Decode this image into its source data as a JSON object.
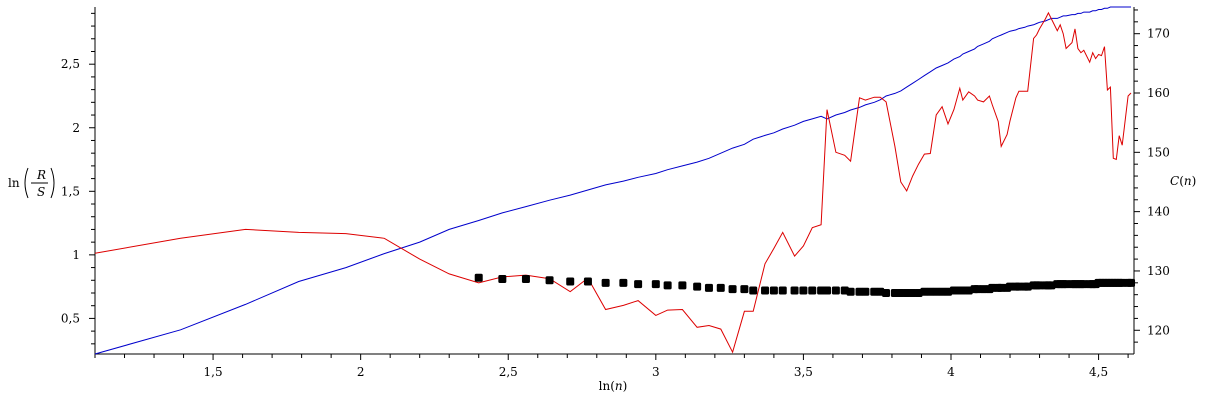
{
  "chart_data": {
    "type": "line",
    "title": "",
    "xlabel": "ln(n)",
    "ylabel_left": "ln(R/S)",
    "ylabel_left_parts": {
      "prefix": "ln",
      "numerator": "R",
      "denominator": "S"
    },
    "ylabel_right": "C(n)",
    "xlim": [
      1.1,
      4.62
    ],
    "ylim_left": [
      0.22,
      2.95
    ],
    "ylim_right": [
      116,
      174.5
    ],
    "x_ticks": [
      1.5,
      2,
      2.5,
      3,
      3.5,
      4,
      4.5
    ],
    "x_tick_labels": [
      "1,5",
      "2",
      "2,5",
      "3",
      "3,5",
      "4",
      "4,5"
    ],
    "y_left_ticks": [
      0.5,
      1,
      1.5,
      2,
      2.5
    ],
    "y_left_tick_labels": [
      "0,5",
      "1",
      "1,5",
      "2",
      "2,5"
    ],
    "y_right_ticks": [
      120,
      130,
      140,
      150,
      160,
      170
    ],
    "y_right_tick_labels": [
      "120",
      "130",
      "140",
      "150",
      "160",
      "170"
    ],
    "grid": false,
    "colors": {
      "blue": "#0000cc",
      "red": "#dd0000",
      "black": "#000000"
    },
    "series": [
      {
        "axis": "left",
        "style": "line",
        "color": "#0000cc",
        "x": [
          1.1,
          1.39,
          1.61,
          1.79,
          1.95,
          2.08,
          2.2,
          2.3,
          2.4,
          2.48,
          2.56,
          2.64,
          2.71,
          2.77,
          2.83,
          2.89,
          2.94,
          3.0,
          3.04,
          3.09,
          3.14,
          3.18,
          3.22,
          3.26,
          3.3,
          3.33,
          3.37,
          3.4,
          3.43,
          3.47,
          3.5,
          3.53,
          3.56,
          3.58,
          3.61,
          3.64,
          3.66,
          3.69,
          3.71,
          3.74,
          3.76,
          3.78,
          3.81,
          3.83,
          3.85,
          3.87,
          3.89,
          3.91,
          3.93,
          3.95,
          3.97,
          3.99,
          4.01,
          4.03,
          4.04,
          4.06,
          4.08,
          4.09,
          4.11,
          4.13,
          4.14,
          4.16,
          4.17,
          4.19,
          4.2,
          4.22,
          4.23,
          4.25,
          4.26,
          4.28,
          4.29,
          4.3,
          4.32,
          4.33,
          4.34,
          4.36,
          4.37,
          4.38,
          4.39,
          4.41,
          4.42,
          4.43,
          4.44,
          4.45,
          4.47,
          4.48,
          4.49,
          4.5,
          4.51,
          4.52,
          4.53,
          4.54,
          4.55,
          4.56,
          4.57,
          4.58,
          4.6,
          4.61
        ],
        "y": [
          0.22,
          0.41,
          0.61,
          0.79,
          0.9,
          1.01,
          1.1,
          1.2,
          1.27,
          1.33,
          1.38,
          1.43,
          1.47,
          1.51,
          1.55,
          1.58,
          1.61,
          1.64,
          1.67,
          1.7,
          1.73,
          1.76,
          1.8,
          1.84,
          1.87,
          1.91,
          1.94,
          1.96,
          1.99,
          2.02,
          2.05,
          2.07,
          2.09,
          2.07,
          2.1,
          2.12,
          2.14,
          2.16,
          2.18,
          2.2,
          2.22,
          2.25,
          2.27,
          2.29,
          2.32,
          2.35,
          2.38,
          2.41,
          2.44,
          2.47,
          2.49,
          2.51,
          2.54,
          2.56,
          2.58,
          2.6,
          2.62,
          2.64,
          2.66,
          2.68,
          2.7,
          2.72,
          2.73,
          2.75,
          2.76,
          2.77,
          2.78,
          2.79,
          2.8,
          2.81,
          2.82,
          2.83,
          2.84,
          2.85,
          2.86,
          2.86,
          2.87,
          2.88,
          2.88,
          2.89,
          2.89,
          2.9,
          2.9,
          2.91,
          2.91,
          2.92,
          2.92,
          2.93,
          2.93,
          2.94,
          2.94,
          2.95,
          2.95,
          2.95,
          2.95,
          2.95,
          2.95,
          2.95
        ]
      },
      {
        "axis": "right",
        "style": "line",
        "color": "#dd0000",
        "x": [
          1.1,
          1.39,
          1.61,
          1.79,
          1.95,
          2.08,
          2.2,
          2.3,
          2.4,
          2.48,
          2.56,
          2.64,
          2.71,
          2.77,
          2.83,
          2.89,
          2.94,
          3.0,
          3.04,
          3.09,
          3.14,
          3.18,
          3.22,
          3.26,
          3.3,
          3.33,
          3.37,
          3.4,
          3.43,
          3.47,
          3.5,
          3.53,
          3.56,
          3.58,
          3.61,
          3.64,
          3.66,
          3.69,
          3.71,
          3.74,
          3.76,
          3.78,
          3.81,
          3.83,
          3.85,
          3.87,
          3.89,
          3.91,
          3.93,
          3.95,
          3.97,
          3.99,
          4.01,
          4.03,
          4.04,
          4.06,
          4.08,
          4.09,
          4.11,
          4.13,
          4.14,
          4.16,
          4.17,
          4.19,
          4.2,
          4.22,
          4.23,
          4.25,
          4.26,
          4.28,
          4.29,
          4.3,
          4.32,
          4.33,
          4.34,
          4.36,
          4.37,
          4.38,
          4.39,
          4.41,
          4.42,
          4.43,
          4.44,
          4.45,
          4.47,
          4.48,
          4.49,
          4.5,
          4.51,
          4.52,
          4.53,
          4.54,
          4.55,
          4.56,
          4.57,
          4.58,
          4.6,
          4.61
        ],
        "y": [
          133,
          135.5,
          137,
          136.5,
          136.3,
          135.5,
          132,
          129.5,
          128,
          129,
          129.3,
          128.7,
          126.5,
          128.8,
          123.5,
          124.2,
          125,
          122.5,
          123.4,
          123.5,
          120.5,
          120.8,
          120.2,
          116.3,
          123.2,
          123.2,
          131.2,
          133.8,
          136.5,
          132.5,
          134.2,
          137.3,
          137.8,
          157.2,
          150,
          149.5,
          148.5,
          159.2,
          158.8,
          159.3,
          159.3,
          158.5,
          151,
          145,
          143.5,
          146,
          148,
          149.7,
          149.8,
          156.3,
          157.7,
          154.8,
          157.2,
          160.8,
          158.8,
          160.2,
          159.5,
          158.8,
          158.5,
          159.5,
          158,
          155.2,
          151,
          153,
          155.3,
          159.2,
          160.3,
          160.3,
          160.3,
          169.2,
          169.8,
          170.8,
          172.5,
          173.5,
          172.5,
          170.5,
          171.5,
          170,
          167.5,
          168.5,
          170.8,
          167.5,
          166.8,
          167.2,
          165.2,
          166.8,
          165.8,
          166.5,
          166.3,
          167.8,
          160.5,
          161,
          149,
          148.8,
          152.8,
          151.2,
          159.5,
          160
        ]
      },
      {
        "axis": "left",
        "style": "points",
        "color": "#000000",
        "x": [
          2.4,
          2.48,
          2.56,
          2.64,
          2.71,
          2.77,
          2.83,
          2.89,
          2.94,
          3.0,
          3.04,
          3.09,
          3.14,
          3.18,
          3.22,
          3.26,
          3.3,
          3.33,
          3.37,
          3.4,
          3.43,
          3.47,
          3.5,
          3.53,
          3.56,
          3.58,
          3.61,
          3.64,
          3.66,
          3.69,
          3.71,
          3.74,
          3.76,
          3.78,
          3.81,
          3.83,
          3.85,
          3.87,
          3.89,
          3.91,
          3.93,
          3.95,
          3.97,
          3.99,
          4.01,
          4.03,
          4.04,
          4.06,
          4.08,
          4.09,
          4.11,
          4.13,
          4.14,
          4.16,
          4.17,
          4.19,
          4.2,
          4.22,
          4.23,
          4.25,
          4.26,
          4.28,
          4.29,
          4.3,
          4.32,
          4.33,
          4.34,
          4.36,
          4.37,
          4.38,
          4.39,
          4.41,
          4.42,
          4.43,
          4.44,
          4.45,
          4.47,
          4.48,
          4.49,
          4.5,
          4.51,
          4.52,
          4.53,
          4.54,
          4.55,
          4.56,
          4.57,
          4.58,
          4.6,
          4.61
        ],
        "y": [
          0.82,
          0.81,
          0.81,
          0.8,
          0.79,
          0.79,
          0.78,
          0.78,
          0.77,
          0.77,
          0.76,
          0.76,
          0.75,
          0.74,
          0.74,
          0.73,
          0.73,
          0.72,
          0.72,
          0.72,
          0.72,
          0.72,
          0.72,
          0.72,
          0.72,
          0.72,
          0.72,
          0.72,
          0.71,
          0.71,
          0.71,
          0.71,
          0.71,
          0.7,
          0.7,
          0.7,
          0.7,
          0.7,
          0.7,
          0.71,
          0.71,
          0.71,
          0.71,
          0.71,
          0.72,
          0.72,
          0.72,
          0.72,
          0.73,
          0.73,
          0.73,
          0.73,
          0.74,
          0.74,
          0.74,
          0.74,
          0.75,
          0.75,
          0.75,
          0.75,
          0.75,
          0.76,
          0.76,
          0.76,
          0.76,
          0.76,
          0.76,
          0.77,
          0.77,
          0.77,
          0.77,
          0.77,
          0.77,
          0.77,
          0.77,
          0.77,
          0.77,
          0.77,
          0.77,
          0.78,
          0.78,
          0.78,
          0.78,
          0.78,
          0.78,
          0.78,
          0.78,
          0.78,
          0.78,
          0.78
        ]
      }
    ]
  }
}
